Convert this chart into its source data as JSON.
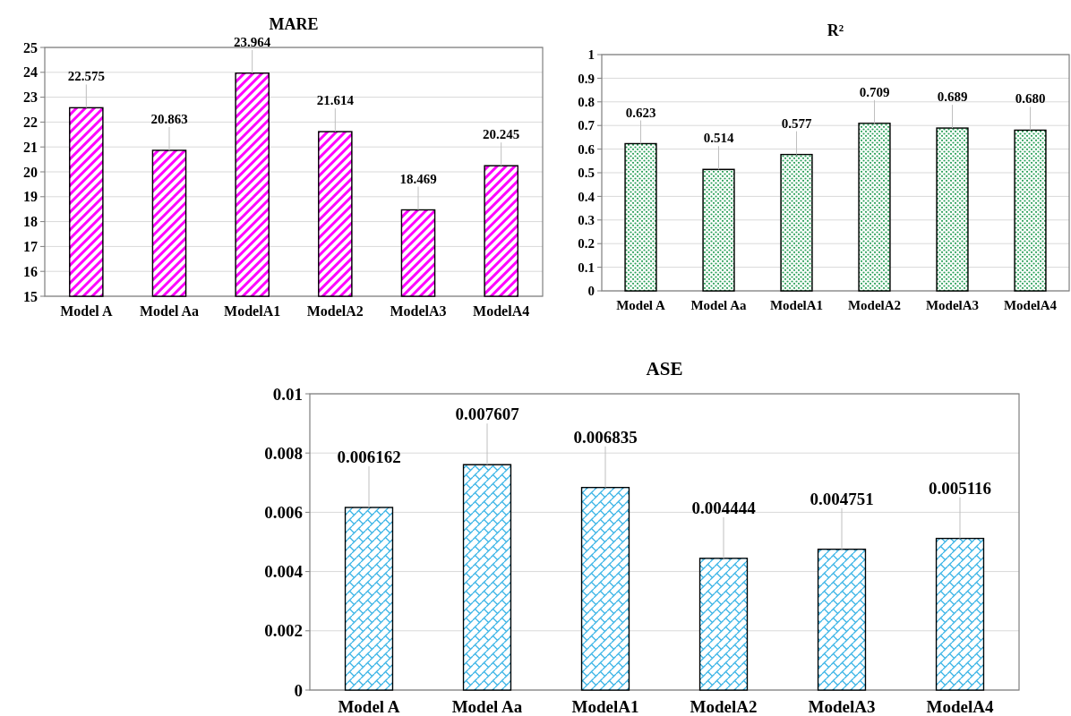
{
  "chart_data": [
    {
      "type": "bar",
      "title": "MARE",
      "categories": [
        "Model A",
        "Model Aa",
        "ModelA1",
        "ModelA2",
        "ModelA3",
        "ModelA4"
      ],
      "values": [
        22.575,
        20.863,
        23.964,
        21.614,
        18.469,
        20.245
      ],
      "value_labels": [
        "22.575",
        "20.863",
        "23.964",
        "21.614",
        "18.469",
        "20.245"
      ],
      "color": "#ff00ff",
      "ylim": [
        15,
        25
      ],
      "yticks": [
        15,
        16,
        17,
        18,
        19,
        20,
        21,
        22,
        23,
        24,
        25
      ],
      "grid": "y"
    },
    {
      "type": "bar",
      "title": "R²",
      "categories": [
        "Model A",
        "Model Aa",
        "ModelA1",
        "ModelA2",
        "ModelA3",
        "ModelA4"
      ],
      "values": [
        0.623,
        0.514,
        0.577,
        0.709,
        0.689,
        0.68
      ],
      "value_labels": [
        "0.623",
        "0.514",
        "0.577",
        "0.709",
        "0.689",
        "0.680"
      ],
      "color": "#2ca05a",
      "ylim": [
        0,
        1
      ],
      "yticks": [
        0,
        0.1,
        0.2,
        0.3,
        0.4,
        0.5,
        0.6,
        0.7,
        0.8,
        0.9,
        1
      ],
      "grid": "y"
    },
    {
      "type": "bar",
      "title": "ASE",
      "categories": [
        "Model A",
        "Model Aa",
        "ModelA1",
        "ModelA2",
        "ModelA3",
        "ModelA4"
      ],
      "values": [
        0.006162,
        0.007607,
        0.006835,
        0.004444,
        0.004751,
        0.005116
      ],
      "value_labels": [
        "0.006162",
        "0.007607",
        "0.006835",
        "0.004444",
        "0.004751",
        "0.005116"
      ],
      "color": "#3ab4e6",
      "ylim": [
        0,
        0.01
      ],
      "yticks": [
        0,
        0.002,
        0.004,
        0.006,
        0.008,
        0.01
      ],
      "grid": "y"
    }
  ]
}
